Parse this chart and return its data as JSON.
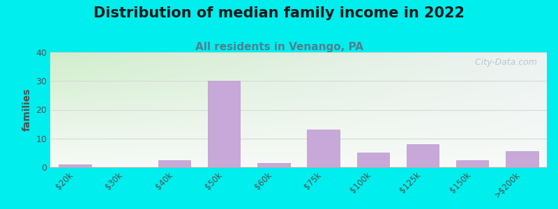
{
  "title": "Distribution of median family income in 2022",
  "subtitle": "All residents in Venango, PA",
  "categories": [
    "$20k",
    "$30k",
    "$40k",
    "$50k",
    "$60k",
    "$75k",
    "$100k",
    "$125k",
    "$150k",
    ">$200k"
  ],
  "values": [
    1,
    0,
    2.5,
    30,
    1.5,
    13,
    5,
    8,
    2.5,
    5.5
  ],
  "bar_color": "#c8a8d8",
  "bar_edge_color": "#b898c8",
  "ylabel": "families",
  "ylim": [
    0,
    40
  ],
  "yticks": [
    0,
    10,
    20,
    30,
    40
  ],
  "background_color": "#00eeee",
  "plot_bg_left_top": "#d0e8c8",
  "plot_bg_right_top": "#e8f0f0",
  "plot_bg_bottom": "#f8f8f5",
  "title_fontsize": 15,
  "subtitle_fontsize": 11,
  "subtitle_color": "#508090",
  "watermark_text": "  City-Data.com",
  "watermark_color": "#b8c8d0",
  "grid_color": "#d8d8d8"
}
